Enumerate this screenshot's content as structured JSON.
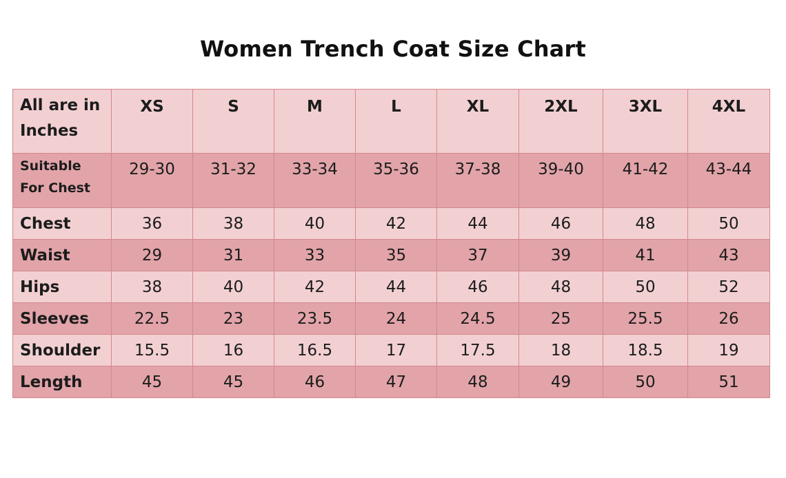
{
  "title": "Women Trench Coat Size Chart",
  "table": {
    "corner_line1": "All are in",
    "corner_line2": "Inches",
    "sizes": [
      "XS",
      "S",
      "M",
      "L",
      "XL",
      "2XL",
      "3XL",
      "4XL"
    ],
    "suitable_line1": "Suitable",
    "suitable_line2": "For Chest",
    "suitable_values": [
      "29-30",
      "31-32",
      "33-34",
      "35-36",
      "37-38",
      "39-40",
      "41-42",
      "43-44"
    ],
    "rows": [
      {
        "label": "Chest",
        "values": [
          "36",
          "38",
          "40",
          "42",
          "44",
          "46",
          "48",
          "50"
        ]
      },
      {
        "label": "Waist",
        "values": [
          "29",
          "31",
          "33",
          "35",
          "37",
          "39",
          "41",
          "43"
        ]
      },
      {
        "label": "Hips",
        "values": [
          "38",
          "40",
          "42",
          "44",
          "46",
          "48",
          "50",
          "52"
        ]
      },
      {
        "label": "Sleeves",
        "values": [
          "22.5",
          "23",
          "23.5",
          "24",
          "24.5",
          "25",
          "25.5",
          "26"
        ]
      },
      {
        "label": "Shoulder",
        "values": [
          "15.5",
          "16",
          "16.5",
          "17",
          "17.5",
          "18",
          "18.5",
          "19"
        ]
      },
      {
        "label": "Length",
        "values": [
          "45",
          "45",
          "46",
          "47",
          "48",
          "49",
          "50",
          "51"
        ]
      }
    ],
    "colors": {
      "light_row": "#f2d0d2",
      "dark_row": "#e2a4a9",
      "border": "#d4868e"
    }
  }
}
